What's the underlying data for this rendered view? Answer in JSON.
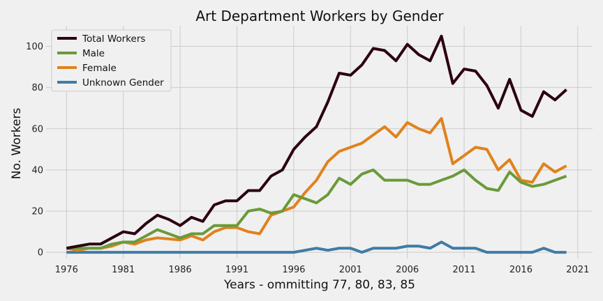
{
  "chart_data": {
    "type": "line",
    "title": "Art Department Workers by Gender",
    "xlabel": "Years - ommitting 77, 80, 83, 85",
    "ylabel": "No. Workers",
    "xlim": [
      1974.2,
      2022.3
    ],
    "ylim": [
      -3,
      110
    ],
    "xticks": [
      1976,
      1981,
      1986,
      1991,
      1996,
      2001,
      2006,
      2011,
      2016,
      2021
    ],
    "yticks": [
      0,
      20,
      40,
      60,
      80,
      100
    ],
    "grid": true,
    "legend_position": "top-left",
    "x": [
      1976,
      1977,
      1978,
      1979,
      1980,
      1981,
      1982,
      1983,
      1984,
      1985,
      1986,
      1987,
      1988,
      1989,
      1990,
      1991,
      1992,
      1993,
      1994,
      1995,
      1996,
      1997,
      1998,
      1999,
      2000,
      2001,
      2002,
      2003,
      2004,
      2005,
      2006,
      2007,
      2008,
      2009,
      2010,
      2011,
      2012,
      2013,
      2014,
      2015,
      2016,
      2017,
      2018,
      2019,
      2020
    ],
    "series": [
      {
        "name": "Total Workers",
        "color": "#2b0010",
        "values": [
          2,
          3,
          4,
          4,
          7,
          10,
          9,
          14,
          18,
          16,
          13,
          17,
          15,
          23,
          25,
          25,
          30,
          30,
          37,
          40,
          50,
          56,
          61,
          73,
          87,
          86,
          91,
          99,
          98,
          93,
          101,
          96,
          93,
          105,
          82,
          89,
          88,
          81,
          70,
          84,
          69,
          66,
          78,
          74,
          79
        ]
      },
      {
        "name": "Male",
        "color": "#6a9a3a",
        "values": [
          2,
          2,
          2,
          2,
          4,
          5,
          5,
          8,
          11,
          9,
          7,
          9,
          9,
          13,
          13,
          13,
          20,
          21,
          19,
          20,
          28,
          26,
          24,
          28,
          36,
          33,
          38,
          40,
          35,
          35,
          35,
          33,
          33,
          35,
          37,
          40,
          35,
          31,
          30,
          39,
          34,
          32,
          33,
          35,
          37
        ]
      },
      {
        "name": "Female",
        "color": "#e0821d",
        "values": [
          2,
          1,
          2,
          2,
          3,
          5,
          4,
          6,
          7,
          6.5,
          6,
          8,
          6,
          10,
          12,
          12,
          10,
          9,
          18,
          20,
          22,
          29,
          35,
          44,
          49,
          51,
          53,
          57,
          61,
          56,
          63,
          60,
          58,
          65,
          43,
          47,
          51,
          50,
          40,
          45,
          35,
          34,
          43,
          39,
          42
        ]
      },
      {
        "name": "Unknown Gender",
        "color": "#3f7ba6",
        "values": [
          0,
          0,
          0,
          0,
          0,
          0,
          0,
          0,
          0,
          0,
          0,
          0,
          0,
          0,
          0,
          0,
          0,
          0,
          0,
          0,
          0,
          1,
          2,
          1,
          2,
          2,
          0,
          2,
          2,
          2,
          3,
          3,
          2,
          5,
          2,
          2,
          2,
          0,
          0,
          0,
          0,
          0,
          2,
          0,
          0
        ]
      }
    ]
  }
}
